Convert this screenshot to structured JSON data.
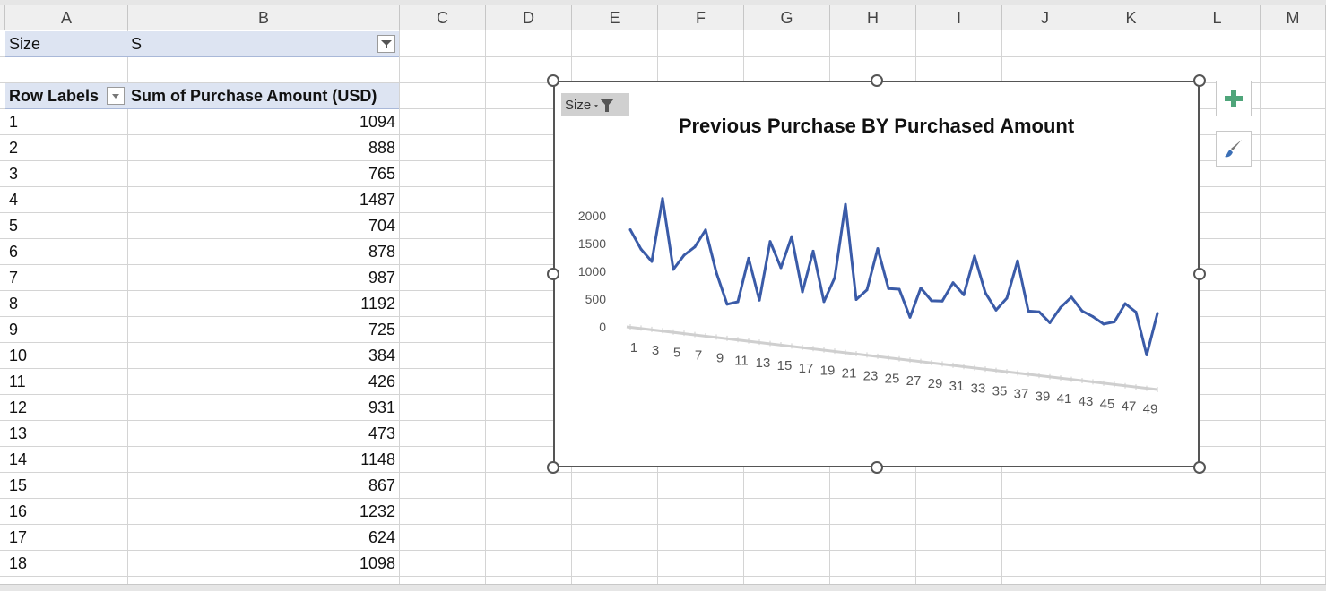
{
  "columns": [
    "A",
    "B",
    "C",
    "D",
    "E",
    "F",
    "G",
    "H",
    "I",
    "J",
    "K",
    "L",
    "M"
  ],
  "filter": {
    "field": "Size",
    "value": "S"
  },
  "pivot": {
    "row_labels_header": "Row Labels",
    "value_header": "Sum of Purchase Amount (USD)",
    "rows": [
      {
        "label": "1",
        "value": "1094"
      },
      {
        "label": "2",
        "value": "888"
      },
      {
        "label": "3",
        "value": "765"
      },
      {
        "label": "4",
        "value": "1487"
      },
      {
        "label": "5",
        "value": "704"
      },
      {
        "label": "6",
        "value": "878"
      },
      {
        "label": "7",
        "value": "987"
      },
      {
        "label": "8",
        "value": "1192"
      },
      {
        "label": "9",
        "value": "725"
      },
      {
        "label": "10",
        "value": "384"
      },
      {
        "label": "11",
        "value": "426"
      },
      {
        "label": "12",
        "value": "931"
      },
      {
        "label": "13",
        "value": "473"
      },
      {
        "label": "14",
        "value": "1148"
      },
      {
        "label": "15",
        "value": "867"
      },
      {
        "label": "16",
        "value": "1232"
      },
      {
        "label": "17",
        "value": "624"
      },
      {
        "label": "18",
        "value": "1098"
      }
    ]
  },
  "chart_filter_label": "Size",
  "chart_data": {
    "type": "line",
    "title": "Previous Purchase BY Purchased Amount",
    "xlabel": "",
    "ylabel": "",
    "y_ticks": [
      "0",
      "500",
      "1000",
      "1500",
      "2000"
    ],
    "ylim": [
      0,
      2000
    ],
    "x_tick_labels": [
      "1",
      "3",
      "5",
      "7",
      "9",
      "11",
      "13",
      "15",
      "17",
      "19",
      "21",
      "23",
      "25",
      "27",
      "29",
      "31",
      "33",
      "35",
      "37",
      "39",
      "41",
      "43",
      "45",
      "47",
      "49"
    ],
    "x": [
      1,
      2,
      3,
      4,
      5,
      6,
      7,
      8,
      9,
      10,
      11,
      12,
      13,
      14,
      15,
      16,
      17,
      18,
      19,
      20,
      21,
      22,
      23,
      24,
      25,
      26,
      27,
      28,
      29,
      30,
      31,
      32,
      33,
      34,
      35,
      36,
      37,
      38,
      39,
      40,
      41,
      42,
      43,
      44,
      45,
      46,
      47,
      48,
      49,
      50
    ],
    "series": [
      {
        "color": "#3a5ba8",
        "values": [
          1094,
          888,
          765,
          1487,
          704,
          878,
          987,
          1192,
          725,
          384,
          426,
          931,
          473,
          1148,
          867,
          1232,
          624,
          1098,
          542,
          825,
          1667,
          610,
          732,
          1212,
          776,
          783,
          482,
          826,
          697,
          708,
          929,
          807,
          1258,
          859,
          678,
          827,
          1261,
          710,
          717,
          608,
          795,
          925,
          783,
          734,
          665,
          704,
          924,
          843,
          375,
          858
        ]
      }
    ],
    "grid": false,
    "legend": "none",
    "perspective": "3d-tilt"
  }
}
